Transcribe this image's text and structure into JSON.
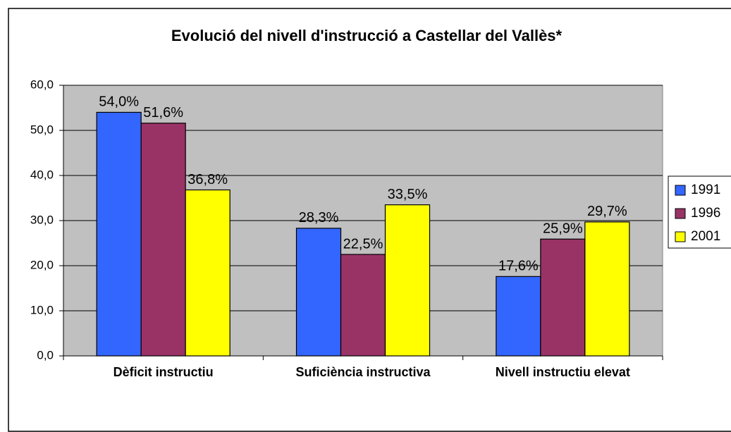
{
  "chart_data": {
    "type": "bar",
    "title": "Evolució del nivell d'instrucció a Castellar del Vallès*",
    "categories": [
      "Dèficit instructiu",
      "Suficiència instructiva",
      "Nivell instructiu elevat"
    ],
    "series": [
      {
        "name": "1991",
        "color": "#3366ff",
        "values": [
          54.0,
          28.3,
          17.6
        ],
        "value_labels": [
          "54,0%",
          "28,3%",
          "17,6%"
        ]
      },
      {
        "name": "1996",
        "color": "#993366",
        "values": [
          51.6,
          22.5,
          25.9
        ],
        "value_labels": [
          "51,6%",
          "22,5%",
          "25,9%"
        ]
      },
      {
        "name": "2001",
        "color": "#ffff00",
        "values": [
          36.8,
          33.5,
          29.7
        ],
        "value_labels": [
          "36,8%",
          "33,5%",
          "29,7%"
        ]
      }
    ],
    "ylim": [
      0,
      60
    ],
    "yticks": [
      {
        "value": 0,
        "label": "0,0"
      },
      {
        "value": 10,
        "label": "10,0"
      },
      {
        "value": 20,
        "label": "20,0"
      },
      {
        "value": 30,
        "label": "30,0"
      },
      {
        "value": 40,
        "label": "40,0"
      },
      {
        "value": 50,
        "label": "50,0"
      },
      {
        "value": 60,
        "label": "60,0"
      }
    ],
    "grid": true,
    "legend": "right"
  }
}
